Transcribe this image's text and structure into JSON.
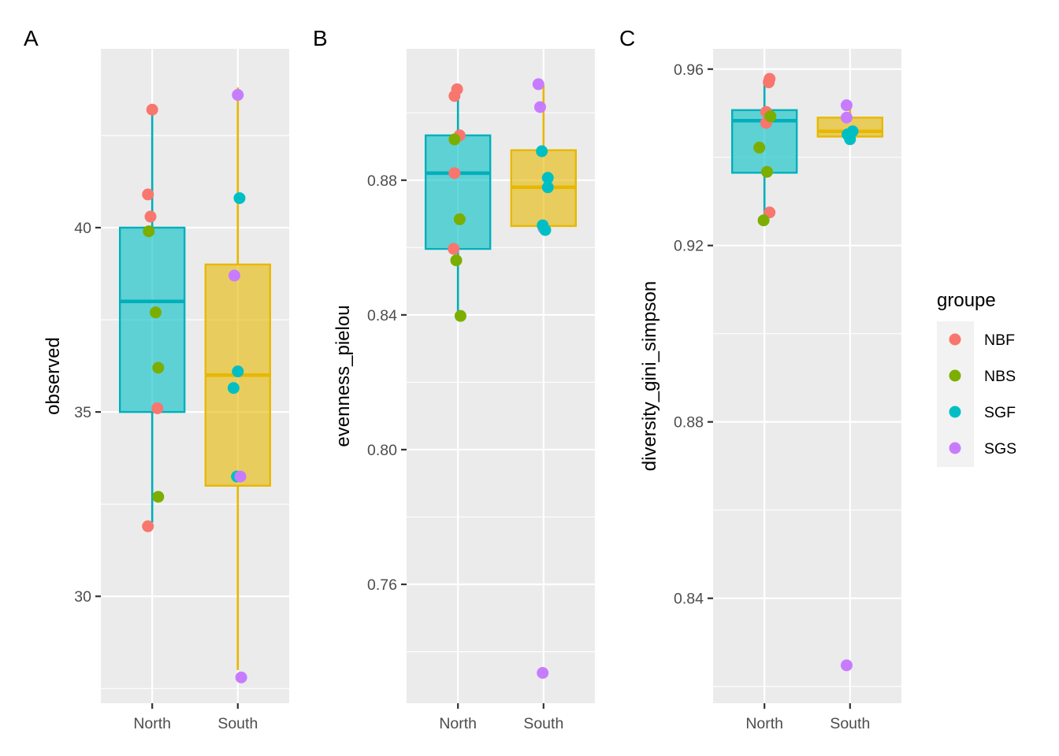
{
  "chart_data": [
    {
      "type": "box",
      "panel_tag": "A",
      "ylabel": "observed",
      "xlabel": "",
      "categories": [
        "North",
        "South"
      ],
      "yticks": [
        30,
        35,
        40
      ],
      "yminor": [
        27.5,
        32.5,
        37.5,
        42.5
      ],
      "ylim": [
        27.1,
        44.85
      ],
      "boxes": [
        {
          "category": "North",
          "q1": 35.0,
          "median": 38.0,
          "q3": 40.0,
          "whisker_low": 32.0,
          "whisker_high": 43.2
        },
        {
          "category": "South",
          "q1": 33.0,
          "median": 36.0,
          "q3": 39.0,
          "whisker_low": 28.0,
          "whisker_high": 43.8
        }
      ],
      "points": [
        {
          "category": "North",
          "group": "NBF",
          "value": 43.2,
          "jitter": 0.0
        },
        {
          "category": "North",
          "group": "NBF",
          "value": 40.9,
          "jitter": -0.05
        },
        {
          "category": "North",
          "group": "NBF",
          "value": 40.3,
          "jitter": -0.02
        },
        {
          "category": "North",
          "group": "NBS",
          "value": 39.9,
          "jitter": -0.04
        },
        {
          "category": "North",
          "group": "NBS",
          "value": 37.7,
          "jitter": 0.04
        },
        {
          "category": "North",
          "group": "NBS",
          "value": 36.2,
          "jitter": 0.07
        },
        {
          "category": "North",
          "group": "NBF",
          "value": 35.1,
          "jitter": 0.06
        },
        {
          "category": "North",
          "group": "NBS",
          "value": 32.7,
          "jitter": 0.07
        },
        {
          "category": "North",
          "group": "NBF",
          "value": 31.9,
          "jitter": -0.05
        },
        {
          "category": "South",
          "group": "SGS",
          "value": 43.6,
          "jitter": 0.0
        },
        {
          "category": "South",
          "group": "SGF",
          "value": 40.8,
          "jitter": 0.02
        },
        {
          "category": "South",
          "group": "SGS",
          "value": 38.7,
          "jitter": -0.04
        },
        {
          "category": "South",
          "group": "SGF",
          "value": 36.1,
          "jitter": 0.0
        },
        {
          "category": "South",
          "group": "SGF",
          "value": 35.65,
          "jitter": -0.05
        },
        {
          "category": "South",
          "group": "SGF",
          "value": 33.25,
          "jitter": -0.01
        },
        {
          "category": "South",
          "group": "SGS",
          "value": 33.25,
          "jitter": 0.03
        },
        {
          "category": "South",
          "group": "SGS",
          "value": 27.8,
          "jitter": 0.04
        }
      ]
    },
    {
      "type": "box",
      "panel_tag": "B",
      "ylabel": "evenness_pielou",
      "xlabel": "",
      "categories": [
        "North",
        "South"
      ],
      "yticks": [
        0.76,
        0.8,
        0.84,
        0.88
      ],
      "ytick_labels": [
        "0.76",
        "0.80",
        "0.84",
        "0.88"
      ],
      "yminor": [
        0.74,
        0.78,
        0.82,
        0.86,
        0.9
      ],
      "ylim": [
        0.7247,
        0.919
      ],
      "boxes": [
        {
          "category": "North",
          "q1": 0.8596,
          "median": 0.8821,
          "q3": 0.8933,
          "whisker_low": 0.8404,
          "whisker_high": 0.9056
        },
        {
          "category": "South",
          "q1": 0.8664,
          "median": 0.8779,
          "q3": 0.8889,
          "whisker_low": 0.8664,
          "whisker_high": 0.9082
        }
      ],
      "points": [
        {
          "category": "North",
          "group": "NBF",
          "value": 0.907,
          "jitter": -0.01
        },
        {
          "category": "North",
          "group": "NBF",
          "value": 0.905,
          "jitter": -0.04
        },
        {
          "category": "North",
          "group": "NBF",
          "value": 0.8933,
          "jitter": 0.02
        },
        {
          "category": "North",
          "group": "NBS",
          "value": 0.8921,
          "jitter": -0.04
        },
        {
          "category": "North",
          "group": "NBF",
          "value": 0.8821,
          "jitter": -0.04
        },
        {
          "category": "North",
          "group": "NBS",
          "value": 0.8684,
          "jitter": 0.02
        },
        {
          "category": "North",
          "group": "NBF",
          "value": 0.8596,
          "jitter": -0.05
        },
        {
          "category": "North",
          "group": "NBS",
          "value": 0.8562,
          "jitter": -0.02
        },
        {
          "category": "North",
          "group": "NBS",
          "value": 0.8397,
          "jitter": 0.03
        },
        {
          "category": "South",
          "group": "SGS",
          "value": 0.9085,
          "jitter": -0.06
        },
        {
          "category": "South",
          "group": "SGS",
          "value": 0.9017,
          "jitter": -0.04
        },
        {
          "category": "South",
          "group": "SGF",
          "value": 0.8886,
          "jitter": -0.02
        },
        {
          "category": "South",
          "group": "SGF",
          "value": 0.8807,
          "jitter": 0.05
        },
        {
          "category": "South",
          "group": "SGF",
          "value": 0.8779,
          "jitter": 0.05
        },
        {
          "category": "South",
          "group": "SGS",
          "value": 0.8658,
          "jitter": 0.0
        },
        {
          "category": "South",
          "group": "SGF",
          "value": 0.8652,
          "jitter": 0.02
        },
        {
          "category": "South",
          "group": "SGF",
          "value": 0.8666,
          "jitter": -0.01
        },
        {
          "category": "South",
          "group": "SGS",
          "value": 0.7337,
          "jitter": -0.01
        }
      ]
    },
    {
      "type": "box",
      "panel_tag": "C",
      "ylabel": "diversity_gini_simpson",
      "xlabel": "",
      "categories": [
        "North",
        "South"
      ],
      "yticks": [
        0.84,
        0.88,
        0.92,
        0.96
      ],
      "ytick_labels": [
        "0.84",
        "0.88",
        "0.92",
        "0.96"
      ],
      "yminor": [
        0.82,
        0.86,
        0.9,
        0.94
      ],
      "ylim": [
        0.8162,
        0.9646
      ],
      "boxes": [
        {
          "category": "North",
          "q1": 0.9365,
          "median": 0.9483,
          "q3": 0.9507,
          "whisker_low": 0.9262,
          "whisker_high": 0.9575
        },
        {
          "category": "South",
          "q1": 0.9447,
          "median": 0.9459,
          "q3": 0.949,
          "whisker_low": 0.9447,
          "whisker_high": 0.951
        }
      ],
      "points": [
        {
          "category": "North",
          "group": "NBF",
          "value": 0.9578,
          "jitter": 0.06
        },
        {
          "category": "North",
          "group": "NBF",
          "value": 0.957,
          "jitter": 0.05
        },
        {
          "category": "North",
          "group": "NBF",
          "value": 0.9503,
          "jitter": 0.02
        },
        {
          "category": "North",
          "group": "NBF",
          "value": 0.9478,
          "jitter": 0.02
        },
        {
          "category": "North",
          "group": "NBS",
          "value": 0.9493,
          "jitter": 0.07
        },
        {
          "category": "North",
          "group": "NBS",
          "value": 0.9422,
          "jitter": -0.06
        },
        {
          "category": "North",
          "group": "NBS",
          "value": 0.9367,
          "jitter": 0.03
        },
        {
          "category": "North",
          "group": "NBF",
          "value": 0.9275,
          "jitter": 0.06
        },
        {
          "category": "North",
          "group": "NBS",
          "value": 0.9257,
          "jitter": -0.01
        },
        {
          "category": "South",
          "group": "SGS",
          "value": 0.9518,
          "jitter": -0.04
        },
        {
          "category": "South",
          "group": "SGS",
          "value": 0.949,
          "jitter": -0.04
        },
        {
          "category": "South",
          "group": "SGF",
          "value": 0.9459,
          "jitter": 0.03
        },
        {
          "category": "South",
          "group": "SGF",
          "value": 0.9452,
          "jitter": -0.03
        },
        {
          "category": "South",
          "group": "SGF",
          "value": 0.9447,
          "jitter": -0.01
        },
        {
          "category": "South",
          "group": "SGF",
          "value": 0.9441,
          "jitter": 0.0
        },
        {
          "category": "South",
          "group": "SGS",
          "value": 0.8248,
          "jitter": -0.04
        }
      ]
    }
  ],
  "legend": {
    "title": "groupe",
    "position": "right",
    "items": [
      {
        "label": "NBF",
        "color": "#F8766D"
      },
      {
        "label": "NBS",
        "color": "#7CAE00"
      },
      {
        "label": "SGF",
        "color": "#00BFC4"
      },
      {
        "label": "SGS",
        "color": "#C77CFF"
      }
    ]
  },
  "box_fill_colors": {
    "North": {
      "fill": "#00BFC4",
      "stroke": "#00AFBB",
      "opacity": 0.6
    },
    "South": {
      "fill": "#E7B800",
      "stroke": "#E7B800",
      "opacity": 0.6
    }
  }
}
